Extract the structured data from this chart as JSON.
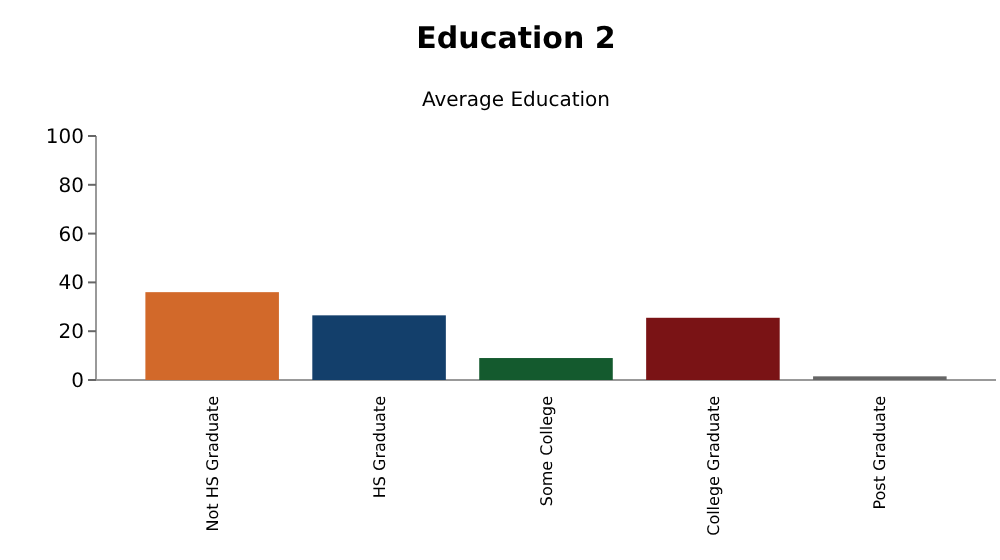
{
  "chart_data": {
    "type": "bar",
    "title": "Education 2",
    "subtitle": "Average Education",
    "categories": [
      "Not HS Graduate",
      "HS Graduate",
      "Some College",
      "College Graduate",
      "Post Graduate"
    ],
    "values": [
      36,
      26.5,
      9,
      25.5,
      1.5
    ],
    "colors": [
      "#d2692a",
      "#133f6b",
      "#145a2e",
      "#7a1315",
      "#666666"
    ],
    "ylim": [
      0,
      100
    ],
    "yticks": [
      0,
      20,
      40,
      60,
      80,
      100
    ],
    "grid": false
  }
}
